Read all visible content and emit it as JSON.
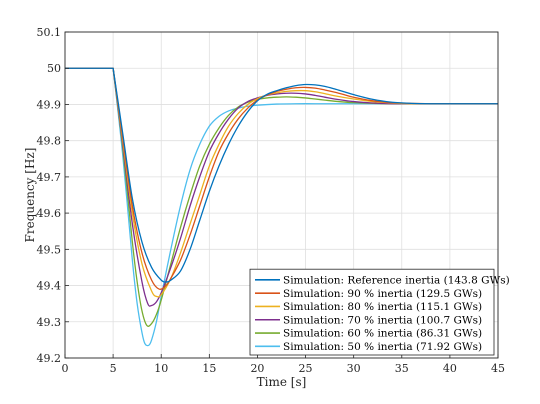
{
  "chart_data": {
    "type": "line",
    "title": "",
    "xlabel": "Time [s]",
    "ylabel": "Frequency [Hz]",
    "xlim": [
      0,
      45
    ],
    "ylim": [
      49.2,
      50.1
    ],
    "xticks": [
      0,
      5,
      10,
      15,
      20,
      25,
      30,
      35,
      40,
      45
    ],
    "yticks": [
      49.2,
      49.3,
      49.4,
      49.5,
      49.6,
      49.7,
      49.8,
      49.9,
      50,
      50.1
    ],
    "xtick_labels": [
      "0",
      "5",
      "10",
      "15",
      "20",
      "25",
      "30",
      "35",
      "40",
      "45"
    ],
    "ytick_labels": [
      "49.2",
      "49.3",
      "49.4",
      "49.5",
      "49.6",
      "49.7",
      "49.8",
      "49.9",
      "50",
      "50.1"
    ],
    "grid": true,
    "legend_position": "bottom-right",
    "series": [
      {
        "name": "Simulation: Reference inertia (143.8 GWs)",
        "color": "#0072BD",
        "x": [
          0,
          5,
          6,
          7,
          8,
          9,
          10,
          10.5,
          11,
          12,
          13,
          14,
          15,
          16,
          17,
          18,
          19,
          20,
          21,
          22,
          23,
          24,
          25,
          26,
          27,
          28,
          29,
          30,
          32,
          34,
          36,
          38,
          40,
          42,
          45
        ],
        "y": [
          50,
          50,
          49.82,
          49.64,
          49.52,
          49.45,
          49.415,
          49.41,
          49.415,
          49.44,
          49.5,
          49.58,
          49.66,
          49.73,
          49.79,
          49.84,
          49.88,
          49.91,
          49.928,
          49.938,
          49.946,
          49.952,
          49.955,
          49.954,
          49.95,
          49.943,
          49.935,
          49.927,
          49.914,
          49.906,
          49.903,
          49.902,
          49.902,
          49.902,
          49.902
        ]
      },
      {
        "name": "Simulation: 90 % inertia (129.5 GWs)",
        "color": "#D95319",
        "x": [
          0,
          5,
          6,
          7,
          8,
          9,
          9.8,
          10.5,
          11,
          12,
          13,
          14,
          15,
          16,
          17,
          18,
          19,
          20,
          21,
          22,
          23,
          24,
          25,
          26,
          27,
          28,
          29,
          30,
          32,
          34,
          36,
          38,
          40,
          42,
          45
        ],
        "y": [
          50,
          50,
          49.81,
          49.62,
          49.49,
          49.415,
          49.39,
          49.4,
          49.42,
          49.47,
          49.54,
          49.62,
          49.7,
          49.77,
          49.82,
          49.86,
          49.89,
          49.912,
          49.926,
          49.936,
          49.942,
          49.946,
          49.947,
          49.945,
          49.94,
          49.934,
          49.927,
          49.92,
          49.91,
          49.905,
          49.903,
          49.902,
          49.902,
          49.902,
          49.902
        ]
      },
      {
        "name": "Simulation: 80 % inertia (115.1 GWs)",
        "color": "#EDB120",
        "x": [
          0,
          5,
          6,
          7,
          8,
          9,
          9.5,
          10,
          11,
          12,
          13,
          14,
          15,
          16,
          17,
          18,
          19,
          20,
          21,
          22,
          23,
          24,
          25,
          26,
          27,
          28,
          30,
          32,
          34,
          36,
          38,
          40,
          42,
          45
        ],
        "y": [
          50,
          50,
          49.8,
          49.6,
          49.46,
          49.385,
          49.37,
          49.375,
          49.42,
          49.49,
          49.57,
          49.65,
          49.73,
          49.79,
          49.84,
          49.875,
          49.9,
          49.916,
          49.926,
          49.932,
          49.936,
          49.938,
          49.938,
          49.935,
          49.93,
          49.924,
          49.915,
          49.908,
          49.904,
          49.902,
          49.902,
          49.902,
          49.902,
          49.902
        ]
      },
      {
        "name": "Simulation: 70 % inertia (100.7 GWs)",
        "color": "#7E2F8E",
        "x": [
          0,
          5,
          6,
          7,
          8,
          8.6,
          9,
          9.5,
          10,
          11,
          12,
          13,
          14,
          15,
          16,
          17,
          18,
          19,
          20,
          21,
          22,
          23,
          24,
          25,
          26,
          27,
          28,
          30,
          32,
          34,
          36,
          38,
          40,
          42,
          45
        ],
        "y": [
          50,
          50,
          49.79,
          49.57,
          49.41,
          49.35,
          49.345,
          49.355,
          49.38,
          49.45,
          49.53,
          49.62,
          49.7,
          49.77,
          49.82,
          49.86,
          49.89,
          49.908,
          49.918,
          49.925,
          49.929,
          49.931,
          49.931,
          49.929,
          49.925,
          49.92,
          49.915,
          49.908,
          49.904,
          49.902,
          49.902,
          49.902,
          49.902,
          49.902,
          49.902
        ]
      },
      {
        "name": "Simulation: 60 % inertia (86.31 GWs)",
        "color": "#77AC30",
        "x": [
          0,
          5,
          6,
          7,
          7.5,
          8,
          8.5,
          9,
          9.5,
          10,
          11,
          12,
          13,
          14,
          15,
          16,
          17,
          18,
          19,
          20,
          21,
          22,
          23,
          24,
          25,
          26,
          27,
          28,
          30,
          32,
          34,
          36,
          38,
          40,
          42,
          45
        ],
        "y": [
          50,
          50,
          49.78,
          49.52,
          49.41,
          49.33,
          49.29,
          49.295,
          49.32,
          49.36,
          49.46,
          49.56,
          49.65,
          49.73,
          49.79,
          49.835,
          49.87,
          49.893,
          49.906,
          49.914,
          49.918,
          49.92,
          49.921,
          49.92,
          49.918,
          49.915,
          49.912,
          49.909,
          49.905,
          49.903,
          49.902,
          49.902,
          49.902,
          49.902,
          49.902,
          49.902
        ]
      },
      {
        "name": "Simulation: 50 % inertia (71.92 GWs)",
        "color": "#4DBEEE",
        "x": [
          0,
          5,
          6,
          7,
          7.5,
          8,
          8.3,
          8.7,
          9,
          9.5,
          10,
          11,
          12,
          13,
          14,
          15,
          16,
          17,
          18,
          19,
          20,
          22,
          24,
          26,
          28,
          30,
          32,
          34,
          36,
          38,
          40,
          42,
          45
        ],
        "y": [
          50,
          50,
          49.76,
          49.47,
          49.35,
          49.27,
          49.24,
          49.235,
          49.25,
          49.3,
          49.37,
          49.5,
          49.62,
          49.72,
          49.79,
          49.84,
          49.867,
          49.882,
          49.89,
          49.895,
          49.898,
          49.901,
          49.902,
          49.902,
          49.902,
          49.902,
          49.902,
          49.902,
          49.902,
          49.902,
          49.902,
          49.902,
          49.902
        ]
      }
    ]
  }
}
